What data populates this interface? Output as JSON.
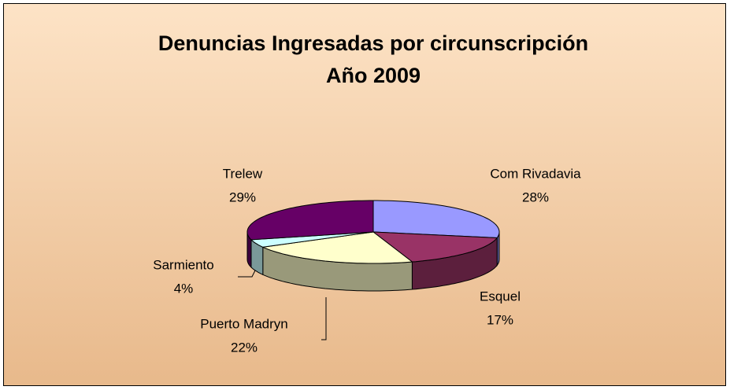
{
  "chart_data": {
    "type": "pie",
    "title": "Denuncias Ingresadas por circunscripción",
    "subtitle": "Año 2009",
    "categories": [
      "Com Rivadavia",
      "Esquel",
      "Puerto Madryn",
      "Sarmiento",
      "Trelew"
    ],
    "values": [
      28,
      17,
      22,
      4,
      29
    ],
    "value_labels": [
      "28%",
      "17%",
      "22%",
      "4%",
      "29%"
    ],
    "colors": [
      "#9999ff",
      "#993366",
      "#ffffcc",
      "#ccffff",
      "#660066"
    ]
  }
}
